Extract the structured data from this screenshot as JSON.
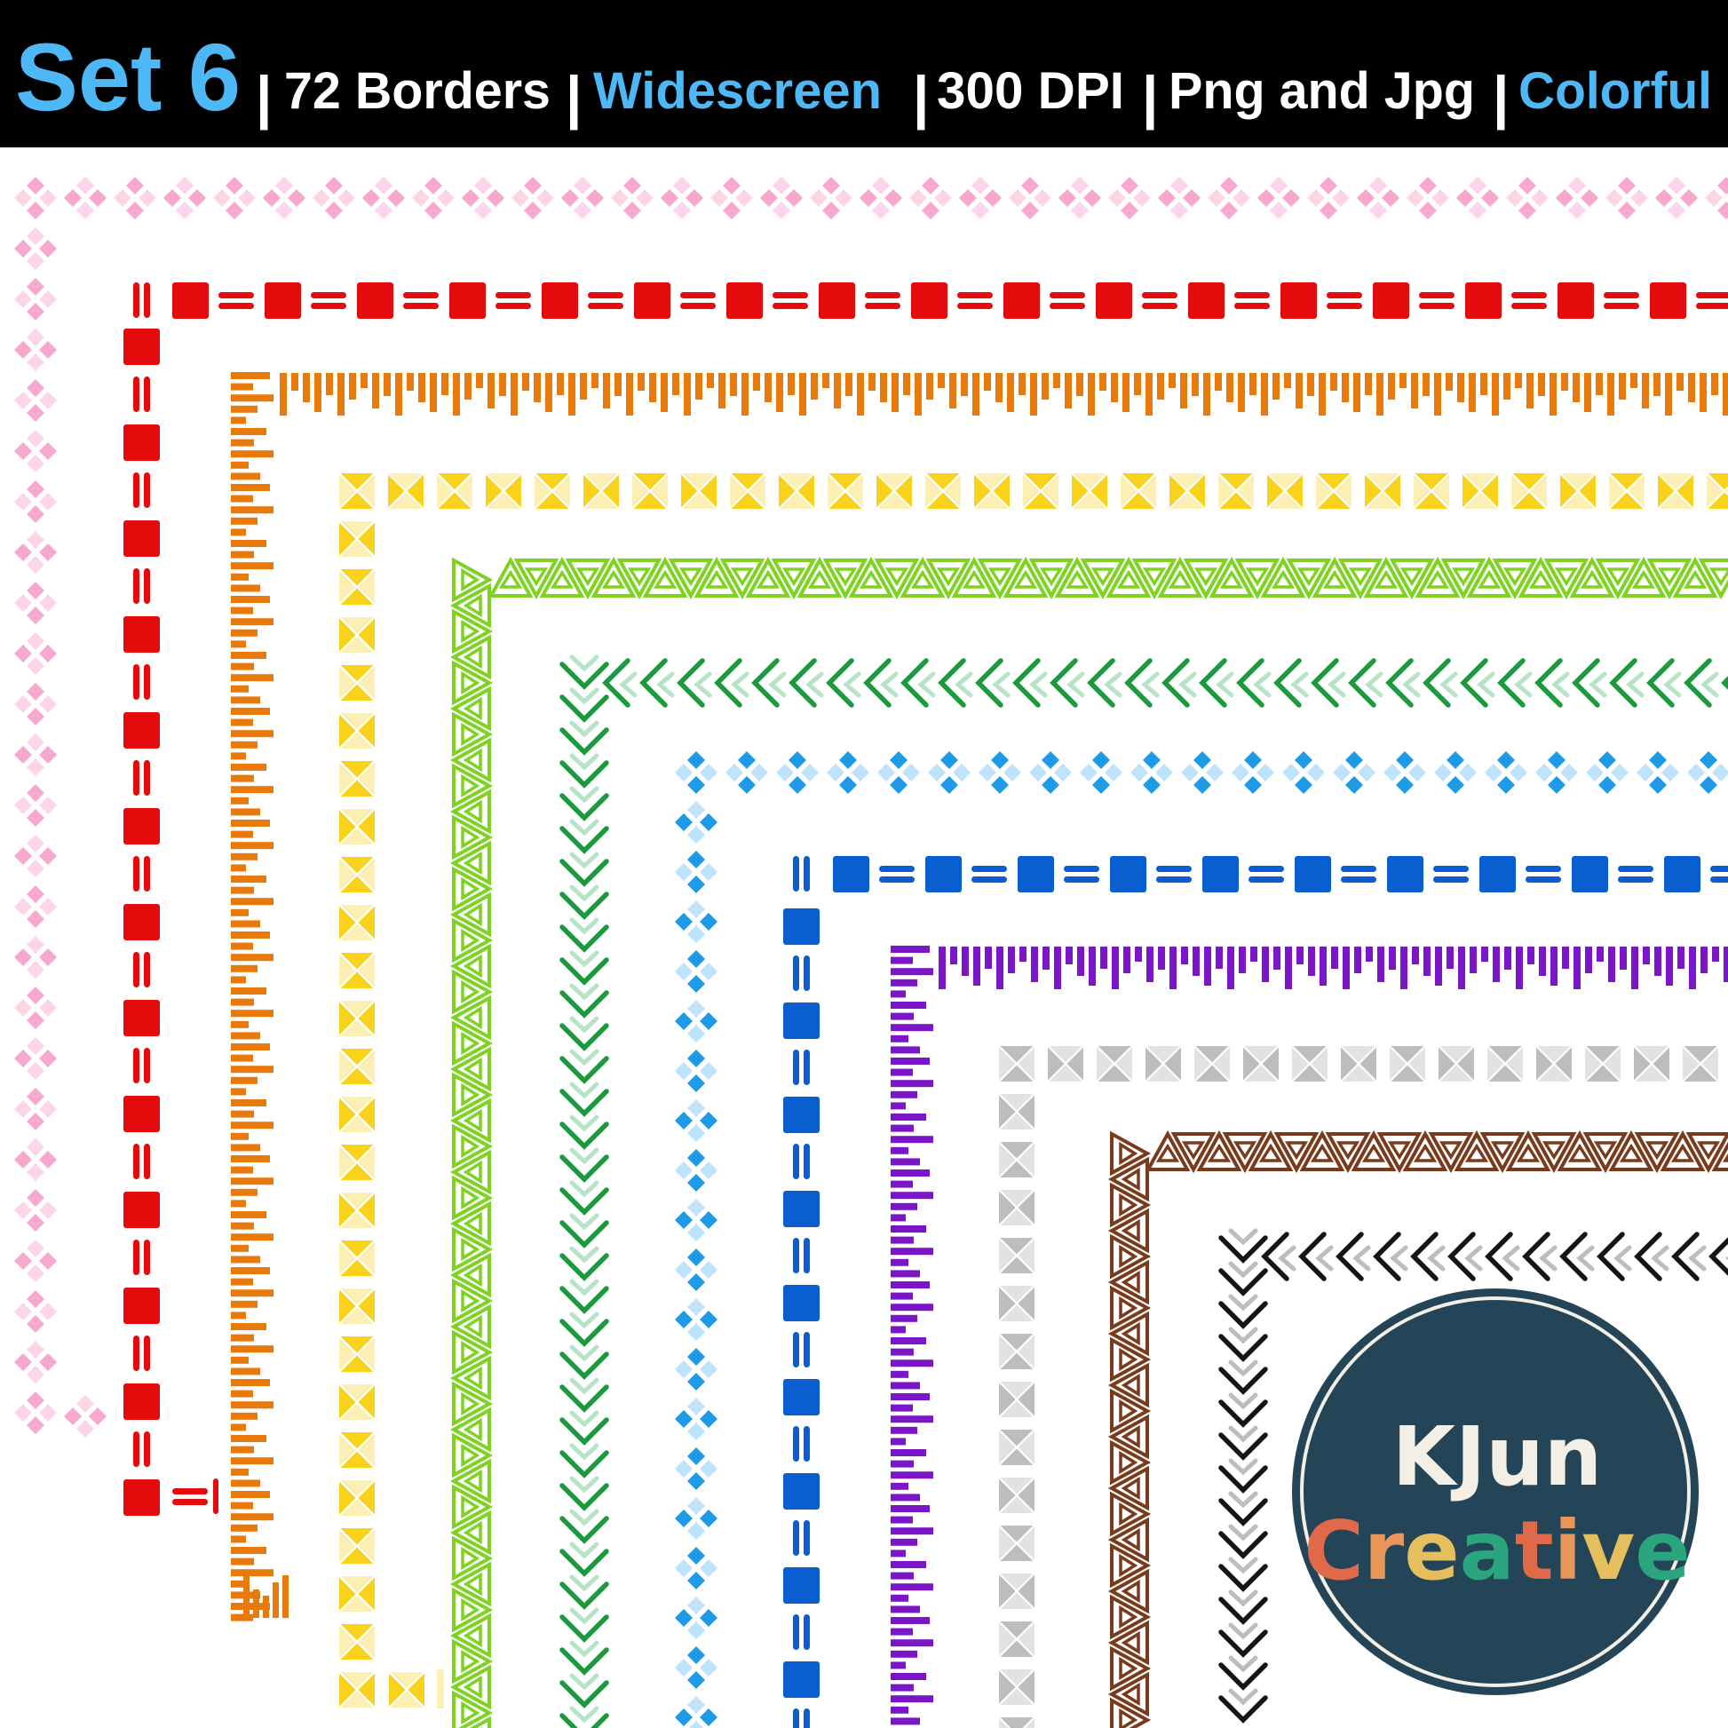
{
  "header": {
    "set_label": "Set 6",
    "items": [
      "72 Borders",
      "Widescreen",
      "300 DPI",
      "Png and Jpg",
      "Colorful"
    ],
    "separator": "|",
    "accent_color": "#4db8f5",
    "text_color": "#ffffff",
    "background": "#000000"
  },
  "borders": [
    {
      "name": "pink-diamond-cluster",
      "colors": [
        "#f7a8cf",
        "#fcd6e8"
      ]
    },
    {
      "name": "red-square-dash",
      "colors": [
        "#e30b0b"
      ]
    },
    {
      "name": "orange-ticks",
      "colors": [
        "#e87a0c"
      ]
    },
    {
      "name": "yellow-hourglass-squares",
      "colors": [
        "#f9d21c",
        "#fcefb3"
      ]
    },
    {
      "name": "lime-triangles",
      "colors": [
        "#7ed321"
      ]
    },
    {
      "name": "green-chevrons",
      "colors": [
        "#1a9a3c",
        "#b7e4c8"
      ]
    },
    {
      "name": "blue-diamond-cluster",
      "colors": [
        "#1e9be8",
        "#bfe3fa"
      ]
    },
    {
      "name": "blue-square-dash",
      "colors": [
        "#0a5fd0"
      ]
    },
    {
      "name": "purple-ticks",
      "colors": [
        "#7b16c8"
      ]
    },
    {
      "name": "gray-hourglass-squares",
      "colors": [
        "#bdbdbd",
        "#e2e2e2"
      ]
    },
    {
      "name": "brown-triangles",
      "colors": [
        "#7a3b1c"
      ]
    },
    {
      "name": "black-chevrons",
      "colors": [
        "#151515",
        "#bdbdbd"
      ]
    }
  ],
  "logo": {
    "line1": "KJun",
    "line2_letters": [
      "C",
      "r",
      "e",
      "a",
      "t",
      "i",
      "v",
      "e"
    ],
    "line2_colors": [
      "#e0694a",
      "#e8965a",
      "#e5bf5e",
      "#2aa57e",
      "#e0694a",
      "#e8965a",
      "#e5bf5e",
      "#2aa57e"
    ],
    "background": "#244457",
    "ring_color": "#f3efe4"
  }
}
